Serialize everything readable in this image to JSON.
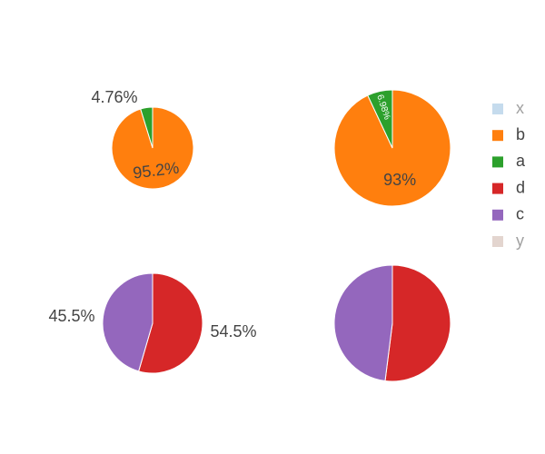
{
  "chart_data": [
    {
      "type": "pie",
      "categories": [
        "b",
        "a"
      ],
      "values": [
        95.2,
        4.76
      ],
      "labels": [
        "95.2%",
        "4.76%"
      ],
      "colors": [
        "#ff7f0e",
        "#2ca02c"
      ]
    },
    {
      "type": "pie",
      "categories": [
        "b",
        "a"
      ],
      "values": [
        93.0,
        6.98
      ],
      "labels": [
        "93%",
        "6.98%"
      ],
      "colors": [
        "#ff7f0e",
        "#2ca02c"
      ]
    },
    {
      "type": "pie",
      "categories": [
        "d",
        "c"
      ],
      "values": [
        54.5,
        45.5
      ],
      "labels": [
        "54.5%",
        "45.5%"
      ],
      "colors": [
        "#d62728",
        "#9467bd"
      ]
    },
    {
      "type": "pie",
      "categories": [
        "d",
        "c"
      ],
      "values": [
        52.0,
        48.0
      ],
      "labels": [
        "",
        ""
      ],
      "colors": [
        "#d62728",
        "#9467bd"
      ]
    }
  ],
  "legend": {
    "placement": "right",
    "items": [
      {
        "label": "x",
        "color": "#8cb8dc",
        "active": false
      },
      {
        "label": "b",
        "color": "#ff7f0e",
        "active": true
      },
      {
        "label": "a",
        "color": "#2ca02c",
        "active": true
      },
      {
        "label": "d",
        "color": "#d62728",
        "active": true
      },
      {
        "label": "c",
        "color": "#9467bd",
        "active": true
      },
      {
        "label": "y",
        "color": "#c9aca0",
        "active": false
      }
    ]
  }
}
